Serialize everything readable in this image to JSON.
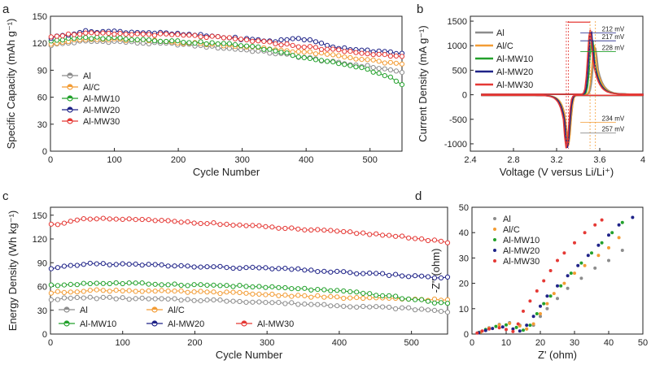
{
  "chart_data": [
    {
      "panel": "a",
      "type": "scatter",
      "xlabel": "Cycle Number",
      "ylabel": "Specific Capacity (mAh g⁻¹)",
      "xlim": [
        0,
        550
      ],
      "ylim": [
        0,
        150
      ],
      "xticks": [
        0,
        100,
        200,
        300,
        400,
        500
      ],
      "yticks": [
        0,
        30,
        60,
        90,
        120,
        150
      ],
      "legend": "left",
      "series": [
        {
          "name": "Al",
          "color": "#8c8c8c",
          "points": [
            [
              1,
              118
            ],
            [
              50,
              122
            ],
            [
              100,
              122
            ],
            [
              150,
              120
            ],
            [
              200,
              119
            ],
            [
              250,
              116
            ],
            [
              300,
              113
            ],
            [
              350,
              109
            ],
            [
              400,
              104
            ],
            [
              450,
              98
            ],
            [
              500,
              94
            ],
            [
              550,
              88
            ]
          ]
        },
        {
          "name": "Al/C",
          "color": "#f39c34",
          "points": [
            [
              1,
              120
            ],
            [
              50,
              124
            ],
            [
              100,
              124
            ],
            [
              150,
              123
            ],
            [
              200,
              121
            ],
            [
              250,
              119
            ],
            [
              300,
              117
            ],
            [
              350,
              113
            ],
            [
              400,
              110
            ],
            [
              450,
              106
            ],
            [
              500,
              101
            ],
            [
              550,
              96
            ]
          ]
        },
        {
          "name": "Al-MW10",
          "color": "#23a12c",
          "points": [
            [
              1,
              123
            ],
            [
              50,
              126
            ],
            [
              100,
              126
            ],
            [
              150,
              124
            ],
            [
              200,
              122
            ],
            [
              250,
              120
            ],
            [
              300,
              118
            ],
            [
              350,
              112
            ],
            [
              400,
              104
            ],
            [
              450,
              98
            ],
            [
              500,
              90
            ],
            [
              530,
              82
            ],
            [
              550,
              75
            ]
          ]
        },
        {
          "name": "Al-MW20",
          "color": "#1f2388",
          "points": [
            [
              1,
              126
            ],
            [
              50,
              133
            ],
            [
              100,
              133
            ],
            [
              150,
              132
            ],
            [
              200,
              130
            ],
            [
              250,
              128
            ],
            [
              300,
              125
            ],
            [
              350,
              122
            ],
            [
              390,
              126
            ],
            [
              400,
              124
            ],
            [
              450,
              115
            ],
            [
              500,
              112
            ],
            [
              550,
              108
            ]
          ]
        },
        {
          "name": "Al-MW30",
          "color": "#e53935",
          "points": [
            [
              1,
              128
            ],
            [
              50,
              131
            ],
            [
              100,
              130
            ],
            [
              150,
              130
            ],
            [
              200,
              129
            ],
            [
              250,
              127
            ],
            [
              300,
              124
            ],
            [
              350,
              120
            ],
            [
              400,
              116
            ],
            [
              450,
              112
            ],
            [
              500,
              108
            ],
            [
              550,
              106
            ]
          ]
        }
      ]
    },
    {
      "panel": "b",
      "type": "line",
      "xlabel": "Voltage (V versus Li/Li⁺)",
      "ylabel": "Current Density (mA g⁻¹)",
      "xlim": [
        2.4,
        4.0
      ],
      "ylim": [
        -1150,
        1600
      ],
      "xticks": [
        2.4,
        2.8,
        3.2,
        3.6,
        4.0
      ],
      "yticks": [
        -1000,
        -500,
        0,
        500,
        1000,
        1500
      ],
      "legend": "left",
      "series": [
        {
          "name": "Al",
          "color": "#8c8c8c",
          "ox_peak": [
            3.56,
            950
          ],
          "red_peak": [
            3.31,
            -1000
          ]
        },
        {
          "name": "Al/C",
          "color": "#f39c34",
          "ox_peak": [
            3.55,
            1000
          ],
          "red_peak": [
            3.31,
            -1020
          ]
        },
        {
          "name": "Al-MW10",
          "color": "#23a12c",
          "ox_peak": [
            3.53,
            1150
          ],
          "red_peak": [
            3.3,
            -1040
          ]
        },
        {
          "name": "Al-MW20",
          "color": "#1f2388",
          "ox_peak": [
            3.52,
            1290
          ],
          "red_peak": [
            3.3,
            -1070
          ]
        },
        {
          "name": "Al-MW30",
          "color": "#e53935",
          "ox_peak": [
            3.51,
            1320
          ],
          "red_peak": [
            3.29,
            -1080
          ]
        }
      ],
      "annotations": [
        "212 mV",
        "217 mV",
        "228 mV",
        "234 mV",
        "257 mV"
      ]
    },
    {
      "panel": "c",
      "type": "scatter",
      "xlabel": "Cycle Number",
      "ylabel": "Energy Density (Wh kg⁻¹)",
      "xlim": [
        0,
        550
      ],
      "ylim": [
        0,
        160
      ],
      "xticks": [
        0,
        100,
        200,
        300,
        400,
        500
      ],
      "yticks": [
        0,
        30,
        60,
        90,
        120,
        150
      ],
      "legend": "bottom",
      "series": [
        {
          "name": "Al",
          "color": "#8c8c8c",
          "points": [
            [
              1,
              44
            ],
            [
              50,
              46
            ],
            [
              100,
              45
            ],
            [
              150,
              44
            ],
            [
              200,
              43
            ],
            [
              250,
              42
            ],
            [
              300,
              40
            ],
            [
              350,
              38
            ],
            [
              400,
              36
            ],
            [
              450,
              34
            ],
            [
              500,
              32
            ],
            [
              550,
              28
            ]
          ]
        },
        {
          "name": "Al/C",
          "color": "#f39c34",
          "points": [
            [
              1,
              52
            ],
            [
              50,
              55
            ],
            [
              100,
              55
            ],
            [
              150,
              54
            ],
            [
              200,
              53
            ],
            [
              250,
              52
            ],
            [
              300,
              50
            ],
            [
              350,
              48
            ],
            [
              400,
              46
            ],
            [
              450,
              45
            ],
            [
              500,
              44
            ],
            [
              550,
              43
            ]
          ]
        },
        {
          "name": "Al-MW10",
          "color": "#23a12c",
          "points": [
            [
              1,
              61
            ],
            [
              50,
              64
            ],
            [
              100,
              64
            ],
            [
              150,
              63
            ],
            [
              200,
              62
            ],
            [
              250,
              61
            ],
            [
              300,
              59
            ],
            [
              350,
              57
            ],
            [
              400,
              54
            ],
            [
              450,
              50
            ],
            [
              500,
              44
            ],
            [
              550,
              38
            ]
          ]
        },
        {
          "name": "Al-MW20",
          "color": "#1f2388",
          "points": [
            [
              1,
              82
            ],
            [
              50,
              89
            ],
            [
              100,
              88
            ],
            [
              150,
              87
            ],
            [
              200,
              85
            ],
            [
              250,
              84
            ],
            [
              300,
              83
            ],
            [
              350,
              81
            ],
            [
              400,
              78
            ],
            [
              450,
              76
            ],
            [
              500,
              73
            ],
            [
              550,
              71
            ]
          ]
        },
        {
          "name": "Al-MW30",
          "color": "#e53935",
          "points": [
            [
              1,
              138
            ],
            [
              50,
              145
            ],
            [
              100,
              145
            ],
            [
              150,
              143
            ],
            [
              200,
              141
            ],
            [
              250,
              138
            ],
            [
              300,
              135
            ],
            [
              350,
              132
            ],
            [
              400,
              129
            ],
            [
              450,
              126
            ],
            [
              500,
              122
            ],
            [
              550,
              115
            ]
          ]
        }
      ]
    },
    {
      "panel": "d",
      "type": "scatter",
      "xlabel": "Z' (ohm)",
      "ylabel": "-Z'' (ohm)",
      "xlim": [
        0,
        50
      ],
      "ylim": [
        0,
        50
      ],
      "xticks": [
        0,
        10,
        20,
        30,
        40,
        50
      ],
      "yticks": [
        0,
        10,
        20,
        30,
        40,
        50
      ],
      "legend": "top-left",
      "series": [
        {
          "name": "Al",
          "color": "#8c8c8c",
          "points": [
            [
              2.5,
              0.8
            ],
            [
              5,
              2.5
            ],
            [
              8,
              3.8
            ],
            [
              11,
              4.5
            ],
            [
              14,
              3.5
            ],
            [
              16,
              2.0
            ],
            [
              18,
              3.5
            ],
            [
              20,
              7
            ],
            [
              22,
              10
            ],
            [
              25,
              14
            ],
            [
              28,
              18
            ],
            [
              32,
              22
            ],
            [
              36,
              26
            ],
            [
              40,
              29
            ],
            [
              44,
              33
            ]
          ]
        },
        {
          "name": "Al/C",
          "color": "#f39c34",
          "points": [
            [
              2.5,
              0.7
            ],
            [
              5,
              2.3
            ],
            [
              8,
              3.6
            ],
            [
              11,
              4.2
            ],
            [
              14,
              3.2
            ],
            [
              16,
              2.0
            ],
            [
              18,
              4
            ],
            [
              20,
              8
            ],
            [
              22,
              12
            ],
            [
              24,
              16
            ],
            [
              27,
              20
            ],
            [
              30,
              24
            ],
            [
              33,
              27
            ],
            [
              37,
              31
            ],
            [
              40,
              34
            ],
            [
              43,
              38
            ]
          ]
        },
        {
          "name": "Al-MW10",
          "color": "#23a12c",
          "points": [
            [
              2,
              0.6
            ],
            [
              4,
              1.8
            ],
            [
              7,
              3.0
            ],
            [
              10,
              3.6
            ],
            [
              13,
              2.6
            ],
            [
              15,
              1.5
            ],
            [
              17,
              3.5
            ],
            [
              19,
              8
            ],
            [
              21,
              12
            ],
            [
              23,
              15
            ],
            [
              26,
              19
            ],
            [
              29,
              24
            ],
            [
              32,
              28
            ],
            [
              35,
              32
            ],
            [
              38,
              36
            ],
            [
              41,
              40
            ],
            [
              44,
              44
            ]
          ]
        },
        {
          "name": "Al-MW20",
          "color": "#1f2388",
          "points": [
            [
              2,
              0.5
            ],
            [
              4,
              1.4
            ],
            [
              6,
              2.2
            ],
            [
              9,
              2.8
            ],
            [
              12,
              2.0
            ],
            [
              14,
              1.2
            ],
            [
              16,
              3.5
            ],
            [
              18,
              7
            ],
            [
              20,
              11
            ],
            [
              22,
              15
            ],
            [
              25,
              19
            ],
            [
              28,
              23
            ],
            [
              31,
              27
            ],
            [
              34,
              31
            ],
            [
              37,
              35
            ],
            [
              40,
              39
            ],
            [
              43,
              43
            ],
            [
              47,
              46
            ]
          ]
        },
        {
          "name": "Al-MW30",
          "color": "#e53935",
          "points": [
            [
              1.5,
              0.4
            ],
            [
              3,
              1.2
            ],
            [
              5,
              2.0
            ],
            [
              8,
              2.5
            ],
            [
              10,
              1.8
            ],
            [
              12,
              1.0
            ],
            [
              13.5,
              4
            ],
            [
              15,
              9
            ],
            [
              17,
              13
            ],
            [
              19,
              17
            ],
            [
              21,
              21
            ],
            [
              23,
              25
            ],
            [
              25,
              29
            ],
            [
              27,
              32
            ],
            [
              30,
              36
            ],
            [
              33,
              40
            ],
            [
              36,
              43
            ],
            [
              38,
              45
            ]
          ]
        }
      ]
    }
  ],
  "panel_labels": {
    "a": "a",
    "b": "b",
    "c": "c",
    "d": "d"
  }
}
